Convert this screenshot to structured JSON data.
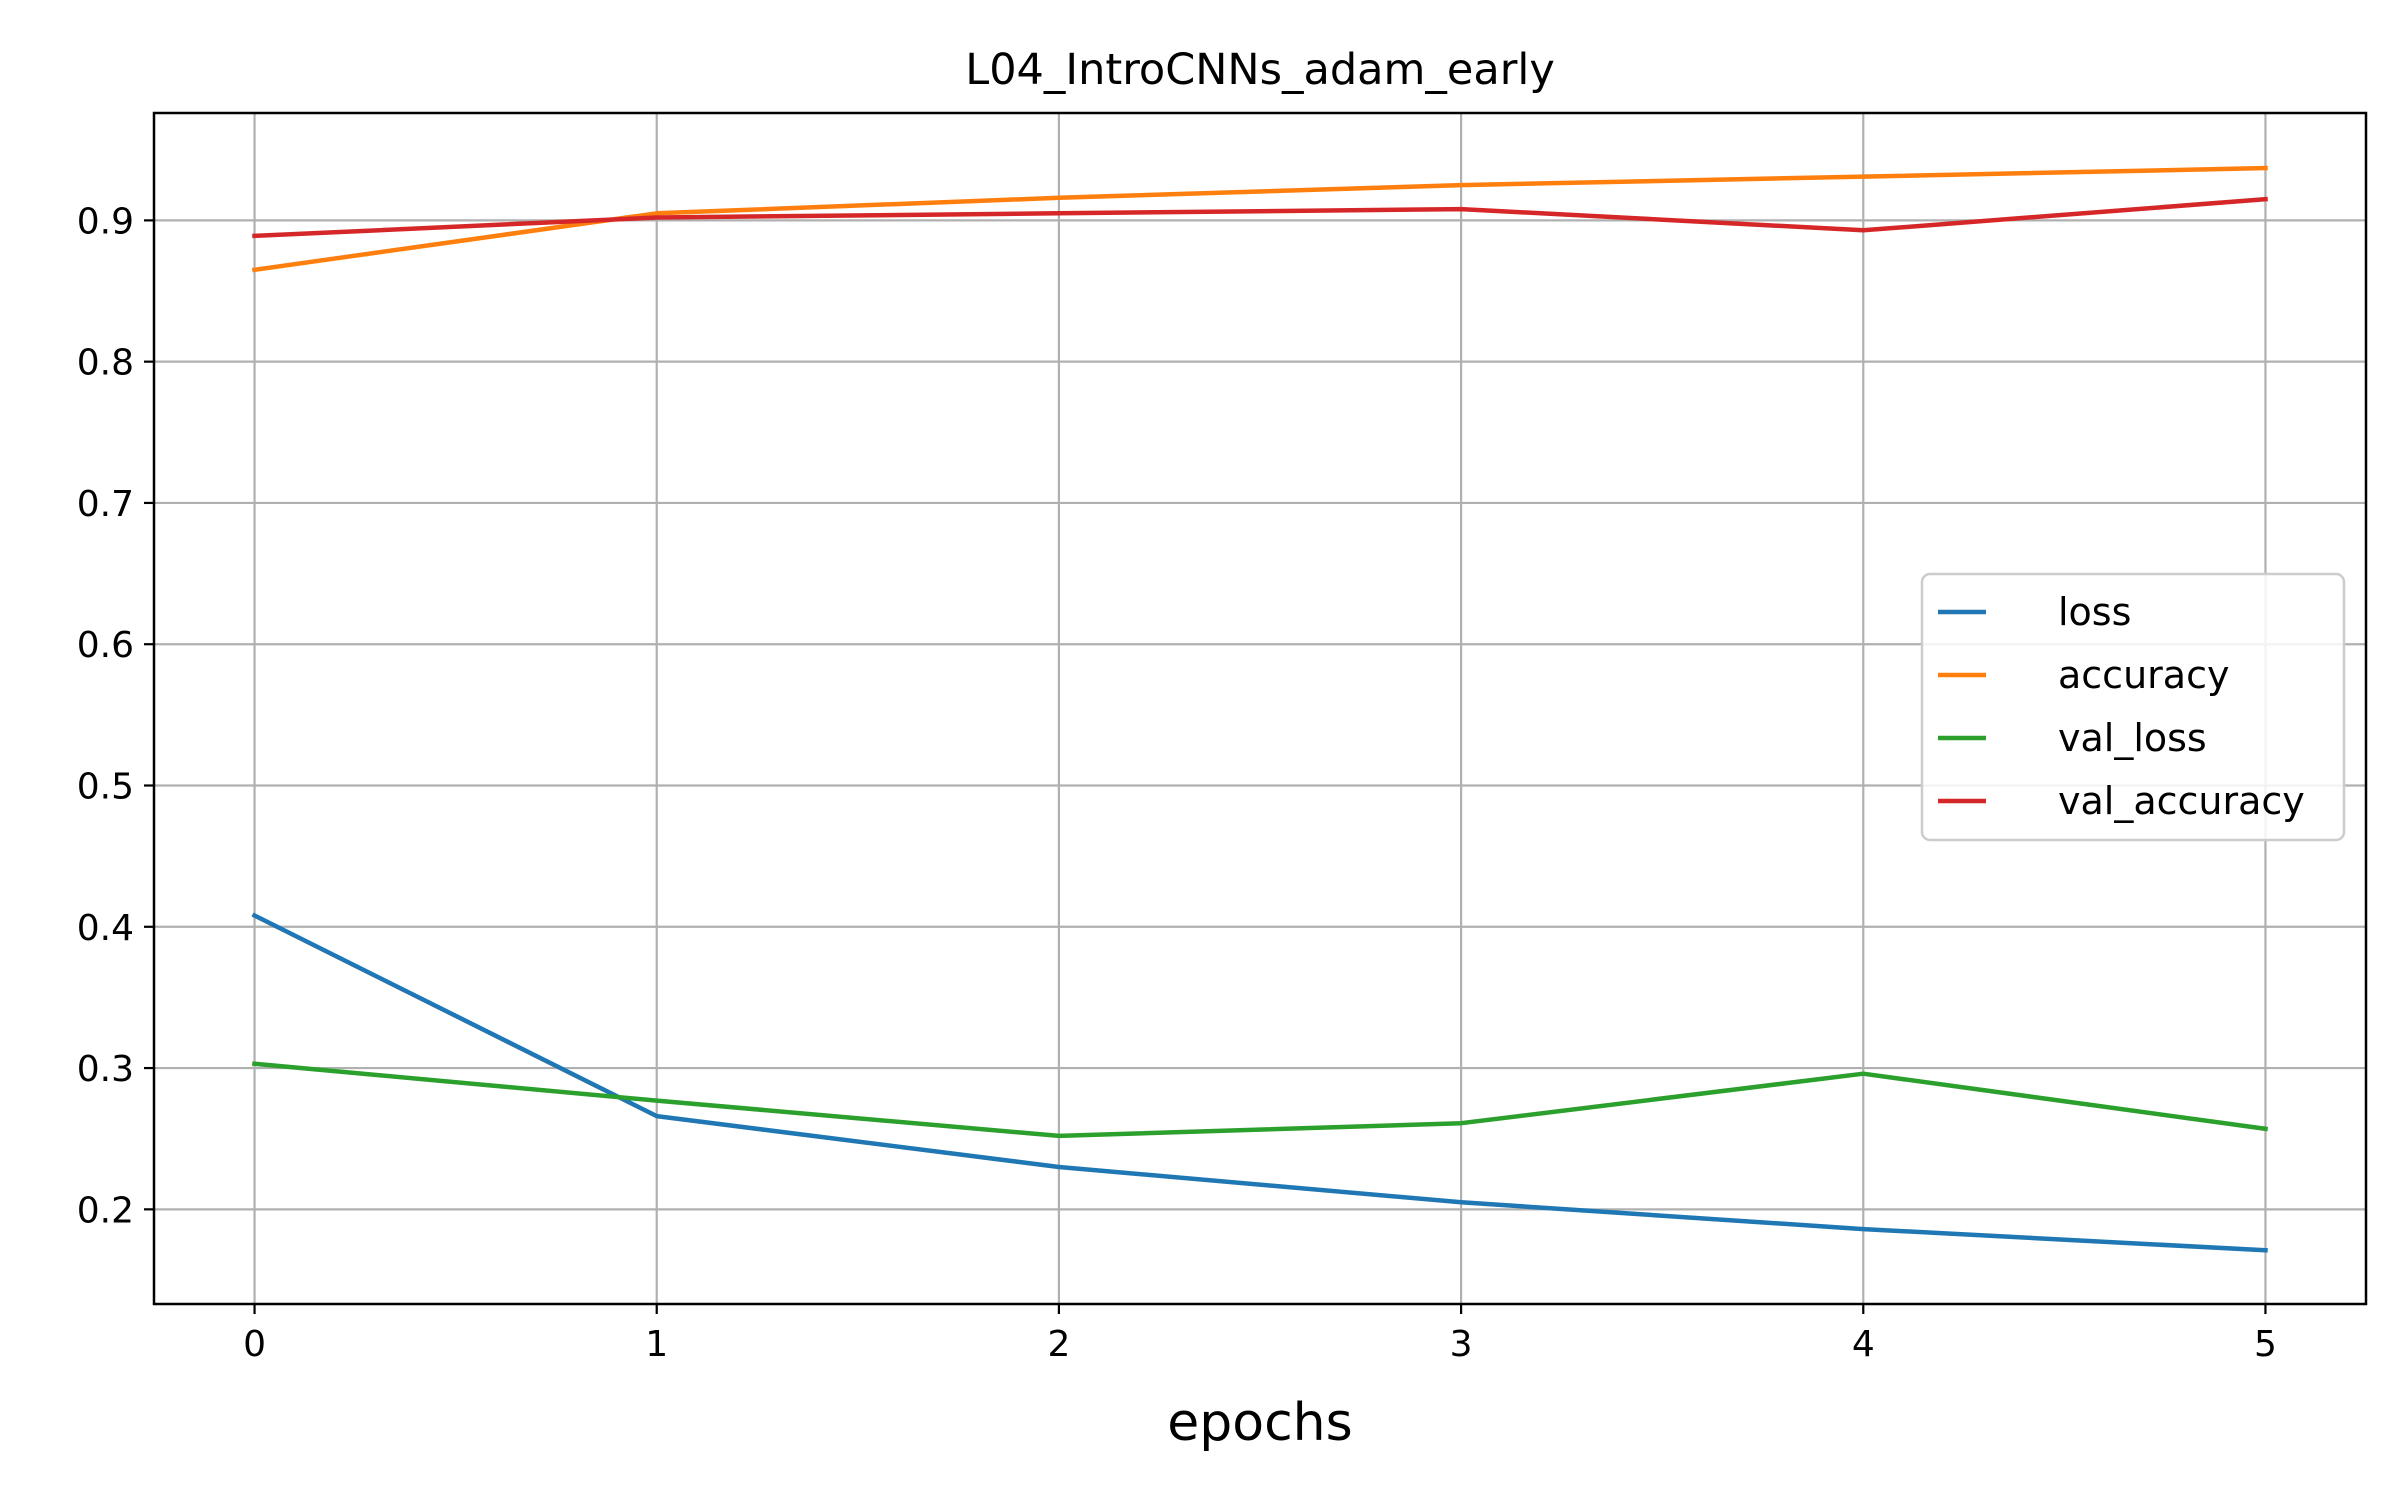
{
  "chart_data": {
    "type": "line",
    "title": "L04_IntroCNNs_adam_early",
    "xlabel": "epochs",
    "ylabel": "",
    "x": [
      0,
      1,
      2,
      3,
      4,
      5
    ],
    "xlim": [
      -0.25,
      5.25
    ],
    "ylim": [
      0.133,
      0.976
    ],
    "xticks": [
      "0",
      "1",
      "2",
      "3",
      "4",
      "5"
    ],
    "yticks": [
      "0.2",
      "0.3",
      "0.4",
      "0.5",
      "0.6",
      "0.7",
      "0.8",
      "0.9"
    ],
    "grid": true,
    "legend_position": "center-right",
    "series": [
      {
        "name": "loss",
        "color": "#1f77b4",
        "values": [
          0.408,
          0.266,
          0.23,
          0.205,
          0.186,
          0.171
        ]
      },
      {
        "name": "accuracy",
        "color": "#ff7f0e",
        "values": [
          0.865,
          0.905,
          0.916,
          0.925,
          0.931,
          0.937
        ]
      },
      {
        "name": "val_loss",
        "color": "#2ca02c",
        "values": [
          0.303,
          0.277,
          0.252,
          0.261,
          0.296,
          0.257
        ]
      },
      {
        "name": "val_accuracy",
        "color": "#d62728",
        "values": [
          0.889,
          0.902,
          0.905,
          0.908,
          0.893,
          0.915
        ]
      }
    ]
  }
}
